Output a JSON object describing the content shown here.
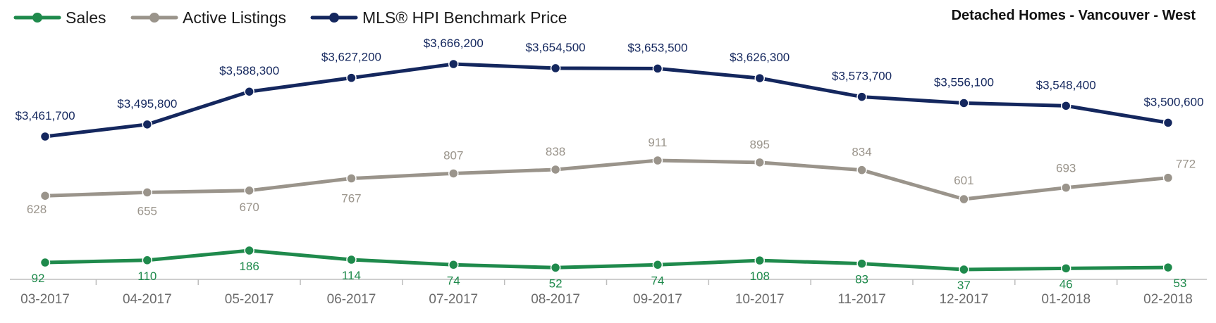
{
  "chart_data": {
    "type": "line",
    "title": "Detached Homes - Vancouver - West",
    "categories": [
      "03-2017",
      "04-2017",
      "05-2017",
      "06-2017",
      "07-2017",
      "08-2017",
      "09-2017",
      "10-2017",
      "11-2017",
      "12-2017",
      "01-2018",
      "02-2018"
    ],
    "series": [
      {
        "name": "Sales",
        "color": "#1f8a4c",
        "values": [
          92,
          110,
          186,
          114,
          74,
          52,
          74,
          108,
          83,
          37,
          46,
          53
        ],
        "labels": [
          "92",
          "110",
          "186",
          "114",
          "74",
          "52",
          "74",
          "108",
          "83",
          "37",
          "46",
          "53"
        ]
      },
      {
        "name": "Active Listings",
        "color": "#9a948b",
        "values": [
          628,
          655,
          670,
          767,
          807,
          838,
          911,
          895,
          834,
          601,
          693,
          772
        ],
        "labels": [
          "628",
          "655",
          "670",
          "767",
          "807",
          "838",
          "911",
          "895",
          "834",
          "601",
          "693",
          "772"
        ]
      },
      {
        "name": "MLS® HPI Benchmark Price",
        "color": "#14275e",
        "values": [
          3461700,
          3495800,
          3588300,
          3627200,
          3666200,
          3654500,
          3653500,
          3626300,
          3573700,
          3556100,
          3548400,
          3500600
        ],
        "labels": [
          "$3,461,700",
          "$3,495,800",
          "$3,588,300",
          "$3,627,200",
          "$3,666,200",
          "$3,654,500",
          "$3,653,500",
          "$3,626,300",
          "$3,573,700",
          "$3,556,100",
          "$3,548,400",
          "$3,500,600"
        ]
      }
    ],
    "legend_position": "top-left",
    "grid": false
  }
}
